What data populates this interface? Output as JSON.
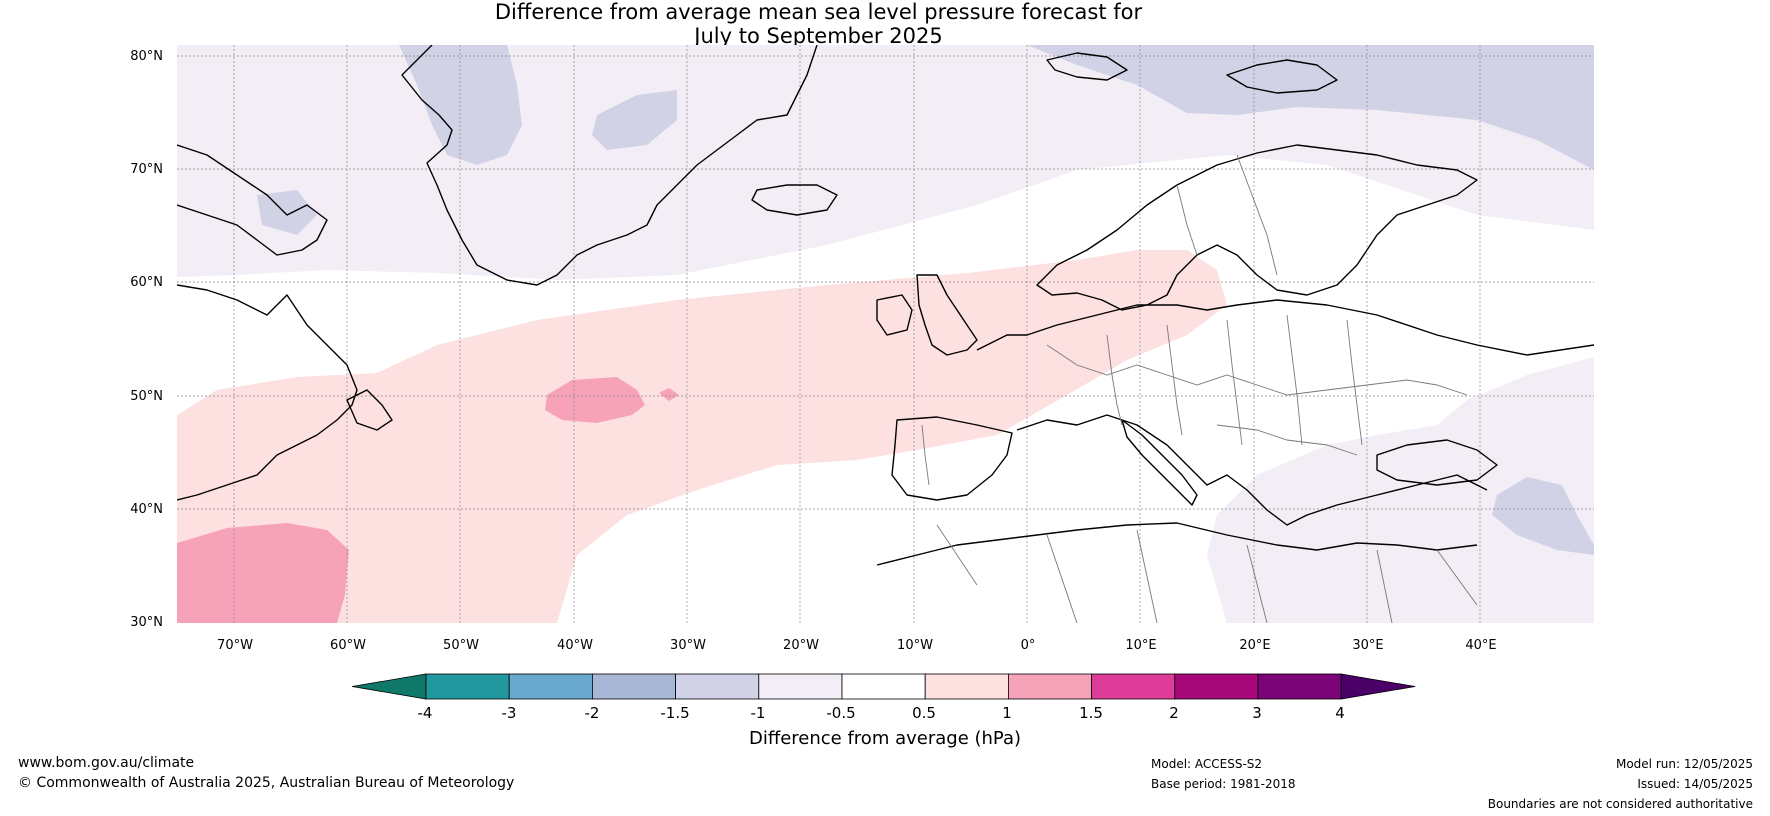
{
  "title_line1": "Difference from average mean sea level pressure forecast for",
  "title_line2": "July to September 2025",
  "lat_ticks": [
    "80°N",
    "70°N",
    "60°N",
    "50°N",
    "40°N",
    "30°N"
  ],
  "lon_ticks": [
    "70°W",
    "60°W",
    "50°W",
    "40°W",
    "30°W",
    "20°W",
    "10°W",
    "0°",
    "10°E",
    "20°E",
    "30°E",
    "40°E"
  ],
  "colorbar": {
    "tick_labels": [
      "-4",
      "-3",
      "-2",
      "-1.5",
      "-1",
      "-0.5",
      "0.5",
      "1",
      "1.5",
      "2",
      "3",
      "4"
    ],
    "colors": [
      "#0f7868",
      "#21979e",
      "#6aa9cf",
      "#a9b7d6",
      "#d1d2e6",
      "#f3eef6",
      "#ffffff",
      "#fde0e0",
      "#f6a3ba",
      "#dd3d99",
      "#a70879",
      "#7a0478",
      "#4b0068"
    ],
    "label": "Difference from average (hPa)"
  },
  "legend_colors": {
    "slightly_low": "#f3eef6",
    "low": "#d1d2e6",
    "slightly_high": "#fde0e0",
    "high": "#f6a3ba"
  },
  "footer": {
    "website": "www.bom.gov.au/climate",
    "copyright": "© Commonwealth of Australia 2025, Australian Bureau of Meteorology",
    "model": "Model: ACCESS-S2",
    "base_period": "Base period: 1981-2018",
    "model_run": "Model run: 12/05/2025",
    "issued": "Issued: 14/05/2025",
    "disclaimer": "Boundaries are not considered authoritative"
  }
}
